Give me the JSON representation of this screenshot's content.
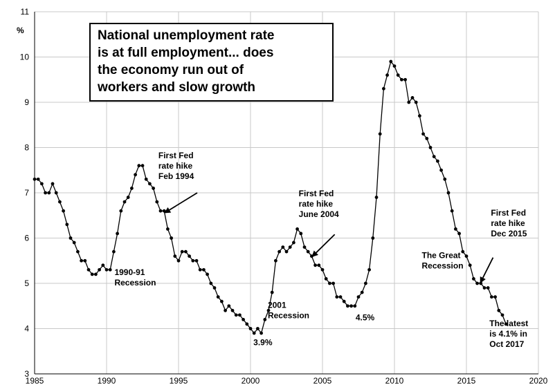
{
  "chart_data": {
    "type": "line",
    "title_lines": [
      "National unemployment rate",
      "is at full employment... does",
      "the economy run out of",
      "workers and slow growth"
    ],
    "ylabel": "%",
    "xlim": [
      1985,
      2020
    ],
    "ylim": [
      3,
      11
    ],
    "x_ticks": [
      "1985",
      "1990",
      "1995",
      "2000",
      "2005",
      "2010",
      "2015",
      "2020"
    ],
    "y_ticks": [
      "3",
      "4",
      "5",
      "6",
      "7",
      "8",
      "9",
      "10",
      "11"
    ],
    "grid": true,
    "series": [
      {
        "color": "#000000",
        "points": [
          [
            1985.0,
            7.3
          ],
          [
            1985.25,
            7.3
          ],
          [
            1985.5,
            7.2
          ],
          [
            1985.75,
            7.0
          ],
          [
            1986.0,
            7.0
          ],
          [
            1986.25,
            7.2
          ],
          [
            1986.5,
            7.0
          ],
          [
            1986.75,
            6.8
          ],
          [
            1987.0,
            6.6
          ],
          [
            1987.25,
            6.3
          ],
          [
            1987.5,
            6.0
          ],
          [
            1987.75,
            5.9
          ],
          [
            1988.0,
            5.7
          ],
          [
            1988.25,
            5.5
          ],
          [
            1988.5,
            5.5
          ],
          [
            1988.75,
            5.3
          ],
          [
            1989.0,
            5.2
          ],
          [
            1989.25,
            5.2
          ],
          [
            1989.5,
            5.3
          ],
          [
            1989.75,
            5.4
          ],
          [
            1990.0,
            5.3
          ],
          [
            1990.25,
            5.3
          ],
          [
            1990.5,
            5.7
          ],
          [
            1990.75,
            6.1
          ],
          [
            1991.0,
            6.6
          ],
          [
            1991.25,
            6.8
          ],
          [
            1991.5,
            6.9
          ],
          [
            1991.75,
            7.1
          ],
          [
            1992.0,
            7.4
          ],
          [
            1992.25,
            7.6
          ],
          [
            1992.5,
            7.6
          ],
          [
            1992.75,
            7.3
          ],
          [
            1993.0,
            7.2
          ],
          [
            1993.25,
            7.1
          ],
          [
            1993.5,
            6.8
          ],
          [
            1993.75,
            6.6
          ],
          [
            1994.0,
            6.6
          ],
          [
            1994.25,
            6.2
          ],
          [
            1994.5,
            6.0
          ],
          [
            1994.75,
            5.6
          ],
          [
            1995.0,
            5.5
          ],
          [
            1995.25,
            5.7
          ],
          [
            1995.5,
            5.7
          ],
          [
            1995.75,
            5.6
          ],
          [
            1996.0,
            5.5
          ],
          [
            1996.25,
            5.5
          ],
          [
            1996.5,
            5.3
          ],
          [
            1996.75,
            5.3
          ],
          [
            1997.0,
            5.2
          ],
          [
            1997.25,
            5.0
          ],
          [
            1997.5,
            4.9
          ],
          [
            1997.75,
            4.7
          ],
          [
            1998.0,
            4.6
          ],
          [
            1998.25,
            4.4
          ],
          [
            1998.5,
            4.5
          ],
          [
            1998.75,
            4.4
          ],
          [
            1999.0,
            4.3
          ],
          [
            1999.25,
            4.3
          ],
          [
            1999.5,
            4.2
          ],
          [
            1999.75,
            4.1
          ],
          [
            2000.0,
            4.0
          ],
          [
            2000.25,
            3.9
          ],
          [
            2000.5,
            4.0
          ],
          [
            2000.75,
            3.9
          ],
          [
            2001.0,
            4.2
          ],
          [
            2001.25,
            4.4
          ],
          [
            2001.5,
            4.8
          ],
          [
            2001.75,
            5.5
          ],
          [
            2002.0,
            5.7
          ],
          [
            2002.25,
            5.8
          ],
          [
            2002.5,
            5.7
          ],
          [
            2002.75,
            5.8
          ],
          [
            2003.0,
            5.9
          ],
          [
            2003.25,
            6.2
          ],
          [
            2003.5,
            6.1
          ],
          [
            2003.75,
            5.8
          ],
          [
            2004.0,
            5.7
          ],
          [
            2004.25,
            5.6
          ],
          [
            2004.5,
            5.4
          ],
          [
            2004.75,
            5.4
          ],
          [
            2005.0,
            5.3
          ],
          [
            2005.25,
            5.1
          ],
          [
            2005.5,
            5.0
          ],
          [
            2005.75,
            5.0
          ],
          [
            2006.0,
            4.7
          ],
          [
            2006.25,
            4.7
          ],
          [
            2006.5,
            4.6
          ],
          [
            2006.75,
            4.5
          ],
          [
            2007.0,
            4.5
          ],
          [
            2007.25,
            4.5
          ],
          [
            2007.5,
            4.7
          ],
          [
            2007.75,
            4.8
          ],
          [
            2008.0,
            5.0
          ],
          [
            2008.25,
            5.3
          ],
          [
            2008.5,
            6.0
          ],
          [
            2008.75,
            6.9
          ],
          [
            2009.0,
            8.3
          ],
          [
            2009.25,
            9.3
          ],
          [
            2009.5,
            9.6
          ],
          [
            2009.75,
            9.9
          ],
          [
            2010.0,
            9.8
          ],
          [
            2010.25,
            9.6
          ],
          [
            2010.5,
            9.5
          ],
          [
            2010.75,
            9.5
          ],
          [
            2011.0,
            9.0
          ],
          [
            2011.25,
            9.1
          ],
          [
            2011.5,
            9.0
          ],
          [
            2011.75,
            8.7
          ],
          [
            2012.0,
            8.3
          ],
          [
            2012.25,
            8.2
          ],
          [
            2012.5,
            8.0
          ],
          [
            2012.75,
            7.8
          ],
          [
            2013.0,
            7.7
          ],
          [
            2013.25,
            7.5
          ],
          [
            2013.5,
            7.3
          ],
          [
            2013.75,
            7.0
          ],
          [
            2014.0,
            6.6
          ],
          [
            2014.25,
            6.2
          ],
          [
            2014.5,
            6.1
          ],
          [
            2014.75,
            5.7
          ],
          [
            2015.0,
            5.6
          ],
          [
            2015.25,
            5.4
          ],
          [
            2015.5,
            5.1
          ],
          [
            2015.75,
            5.0
          ],
          [
            2016.0,
            5.0
          ],
          [
            2016.25,
            4.9
          ],
          [
            2016.5,
            4.9
          ],
          [
            2016.75,
            4.7
          ],
          [
            2017.0,
            4.7
          ],
          [
            2017.25,
            4.4
          ],
          [
            2017.5,
            4.3
          ],
          [
            2017.75,
            4.1
          ]
        ]
      }
    ],
    "annotations": [
      {
        "id": "recession-1990",
        "lines": [
          "1990-91",
          "Recession"
        ],
        "x": 1990.55,
        "y": 5.18
      },
      {
        "id": "fed-1994",
        "lines": [
          "First Fed",
          "rate hike",
          "Feb 1994"
        ],
        "x": 1993.6,
        "y": 7.76
      },
      {
        "id": "low-39",
        "lines": [
          "3.9%"
        ],
        "x": 2000.2,
        "y": 3.63
      },
      {
        "id": "recession-2001",
        "lines": [
          "2001",
          "Recession"
        ],
        "x": 2001.2,
        "y": 4.46
      },
      {
        "id": "fed-2004",
        "lines": [
          "First Fed",
          "rate hike",
          "June 2004"
        ],
        "x": 2003.35,
        "y": 6.92
      },
      {
        "id": "low-45",
        "lines": [
          "4.5%"
        ],
        "x": 2007.3,
        "y": 4.18
      },
      {
        "id": "great-recession",
        "lines": [
          "The Great",
          "Recession"
        ],
        "x": 2011.9,
        "y": 5.56
      },
      {
        "id": "fed-2015",
        "lines": [
          "First Fed",
          "rate hike",
          "Dec 2015"
        ],
        "x": 2016.7,
        "y": 6.5
      },
      {
        "id": "latest",
        "lines": [
          "The latest",
          "is 4.1% in",
          "Oct 2017"
        ],
        "x": 2016.6,
        "y": 4.05
      }
    ],
    "arrows": [
      {
        "id": "arrow-1994",
        "from": [
          1996.3,
          7.0
        ],
        "to": [
          1994.0,
          6.55
        ]
      },
      {
        "id": "arrow-2004",
        "from": [
          2005.85,
          6.08
        ],
        "to": [
          2004.25,
          5.58
        ]
      },
      {
        "id": "arrow-2015",
        "from": [
          2016.85,
          5.57
        ],
        "to": [
          2015.95,
          5.0
        ]
      }
    ]
  }
}
